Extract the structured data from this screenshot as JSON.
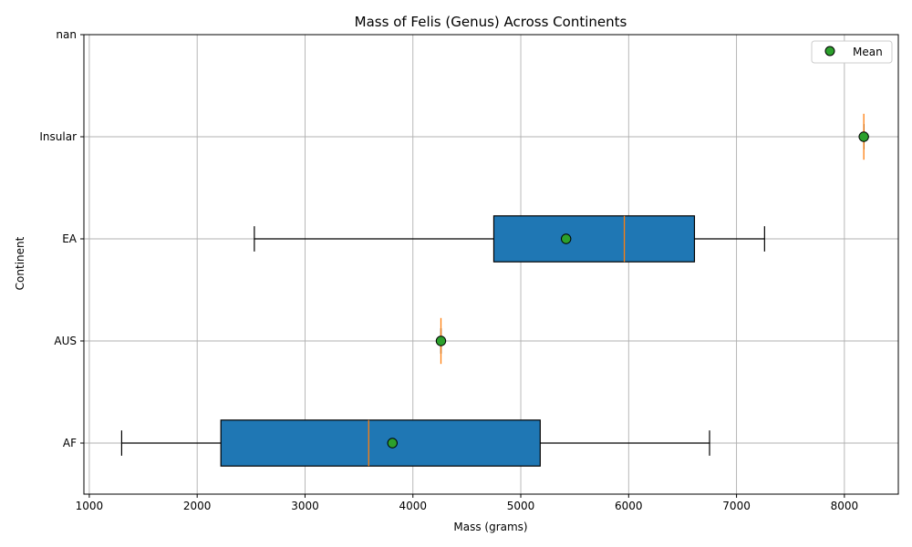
{
  "chart_data": {
    "type": "boxplot",
    "orientation": "horizontal",
    "title": "Mass of Felis (Genus) Across Continents",
    "xlabel": "Mass (grams)",
    "ylabel": "Continent",
    "xlim": [
      950,
      8500
    ],
    "xticks": [
      1000,
      2000,
      3000,
      4000,
      5000,
      6000,
      7000,
      8000
    ],
    "categories": [
      "AF",
      "AUS",
      "EA",
      "Insular",
      "nan"
    ],
    "boxes": [
      {
        "category": "AF",
        "whisker_low": 1300,
        "q1": 2220,
        "median": 3590,
        "q3": 5180,
        "whisker_high": 6750,
        "mean": 3810
      },
      {
        "category": "AUS",
        "whisker_low": 4260,
        "q1": 4260,
        "median": 4260,
        "q3": 4260,
        "whisker_high": 4260,
        "mean": 4260
      },
      {
        "category": "EA",
        "whisker_low": 2530,
        "q1": 4750,
        "median": 5960,
        "q3": 6610,
        "whisker_high": 7260,
        "mean": 5420
      },
      {
        "category": "Insular",
        "whisker_low": 8180,
        "q1": 8180,
        "median": 8180,
        "q3": 8180,
        "whisker_high": 8180,
        "mean": 8180
      },
      {
        "category": "nan",
        "whisker_low": null,
        "q1": null,
        "median": null,
        "q3": null,
        "whisker_high": null,
        "mean": null
      }
    ],
    "legend": {
      "position": "top-right",
      "entries": [
        {
          "label": "Mean"
        }
      ]
    },
    "grid": true,
    "colors": {
      "box_fill": "#1f77b4",
      "median": "#ff7f0e",
      "mean_marker": "#2ca02c",
      "edge": "#000000"
    }
  }
}
